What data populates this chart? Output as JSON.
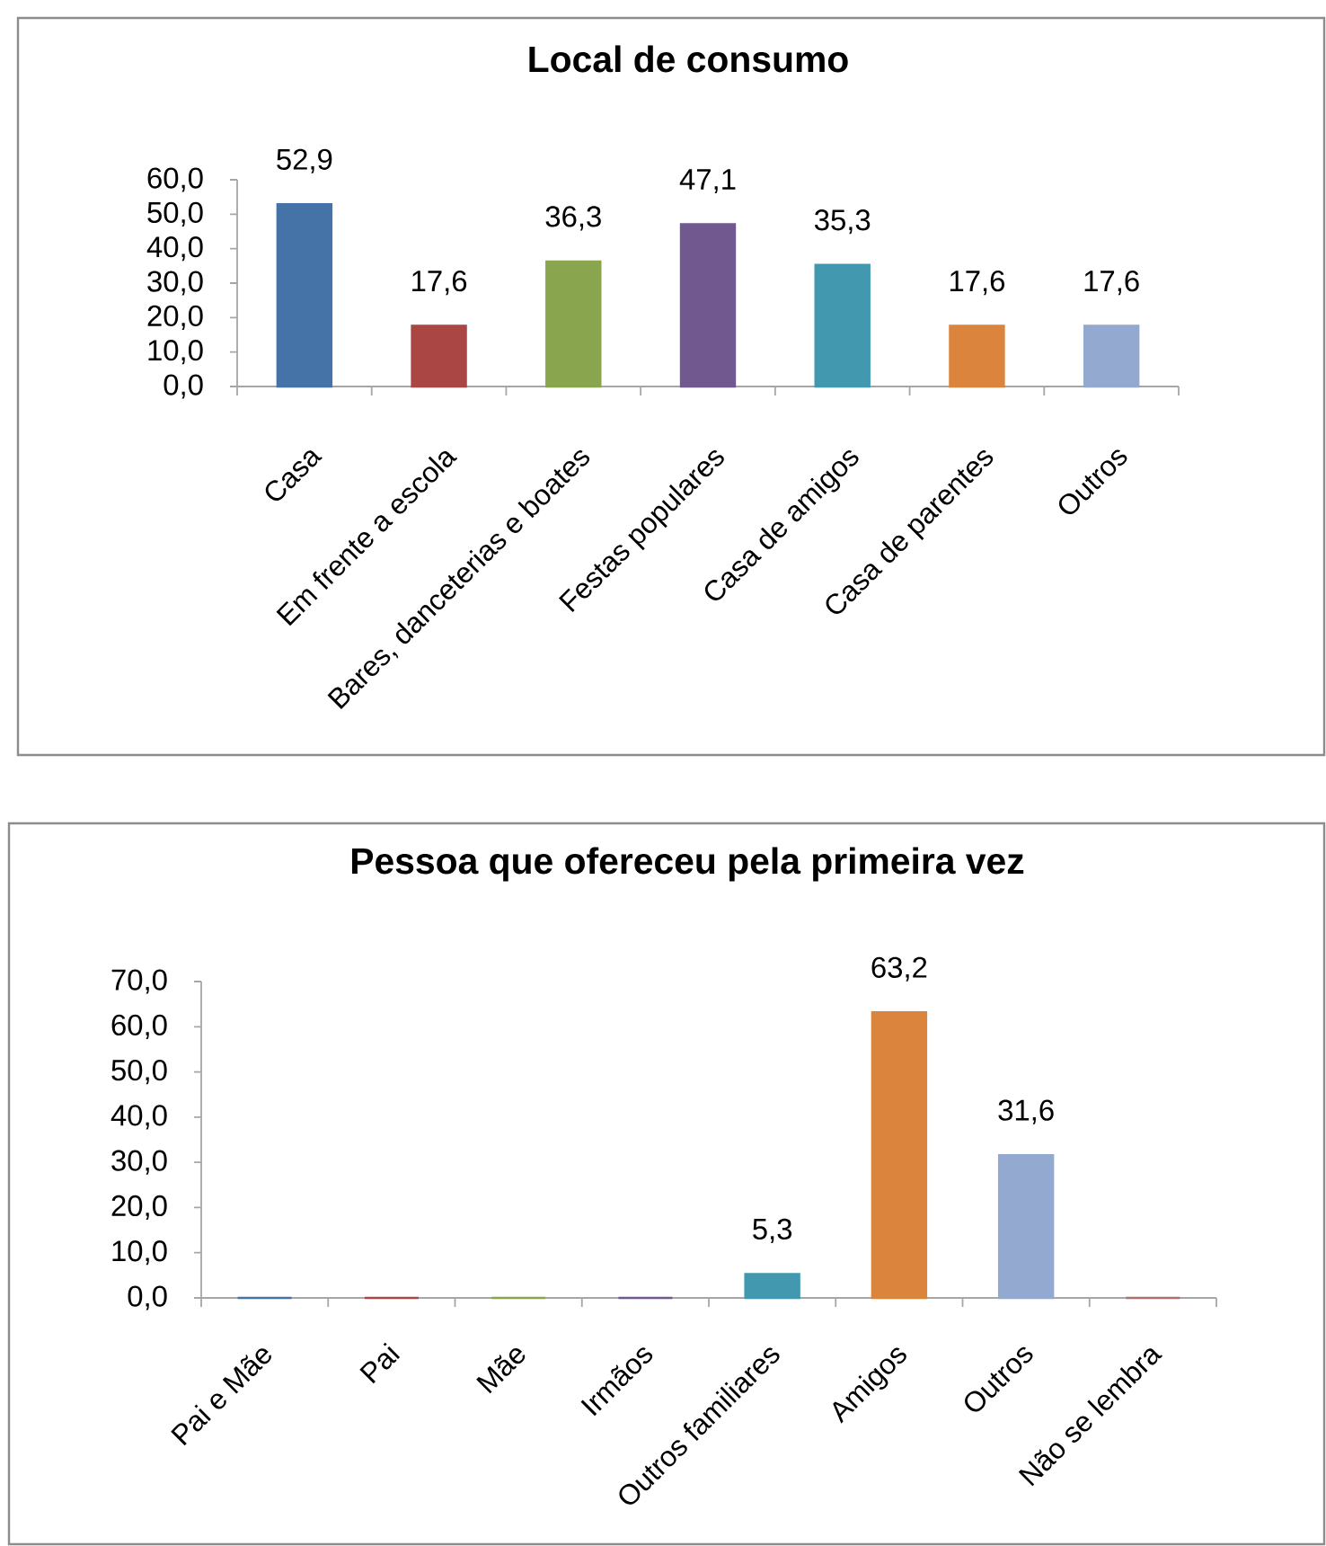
{
  "chart_data": [
    {
      "type": "bar",
      "title": "Local de consumo",
      "categories": [
        "Casa",
        "Em frente a escola",
        "Bares, danceterias e boates",
        "Festas populares",
        "Casa de amigos",
        "Casa de parentes",
        "Outros"
      ],
      "values": [
        52.9,
        17.6,
        36.3,
        47.1,
        35.3,
        17.6,
        17.6
      ],
      "colors": [
        "#4572a7",
        "#aa4643",
        "#89a54e",
        "#71588f",
        "#4198af",
        "#db843d",
        "#93a9cf"
      ],
      "value_labels": [
        "52,9",
        "17,6",
        "36,3",
        "47,1",
        "35,3",
        "17,6",
        "17,6"
      ],
      "ylim": [
        0,
        60
      ],
      "yticks": [
        {
          "value": 0,
          "label": "0,0"
        },
        {
          "value": 10,
          "label": "10,0"
        },
        {
          "value": 20,
          "label": "20,0"
        },
        {
          "value": 30,
          "label": "30,0"
        },
        {
          "value": 40,
          "label": "40,0"
        },
        {
          "value": 50,
          "label": "50,0"
        },
        {
          "value": 60,
          "label": "60,0"
        }
      ]
    },
    {
      "type": "bar",
      "title": "Pessoa que ofereceu pela primeira vez",
      "categories": [
        "Pai e Mãe",
        "Pai",
        "Mãe",
        "Irmãos",
        "Outros familiares",
        "Amigos",
        "Outros",
        "Não se lembra"
      ],
      "values": [
        0,
        0,
        0,
        0,
        5.3,
        63.2,
        31.6,
        0
      ],
      "colors": [
        "#4572a7",
        "#aa4643",
        "#89a54e",
        "#71588f",
        "#4198af",
        "#db843d",
        "#93a9cf",
        "#a9706e"
      ],
      "value_labels": [
        null,
        null,
        null,
        null,
        "5,3",
        "63,2",
        "31,6",
        null
      ],
      "ylim": [
        0,
        70
      ],
      "yticks": [
        {
          "value": 0,
          "label": "0,0"
        },
        {
          "value": 10,
          "label": "10,0"
        },
        {
          "value": 20,
          "label": "20,0"
        },
        {
          "value": 30,
          "label": "30,0"
        },
        {
          "value": 40,
          "label": "40,0"
        },
        {
          "value": 50,
          "label": "50,0"
        },
        {
          "value": 60,
          "label": "60,0"
        },
        {
          "value": 70,
          "label": "70,0"
        }
      ]
    }
  ]
}
